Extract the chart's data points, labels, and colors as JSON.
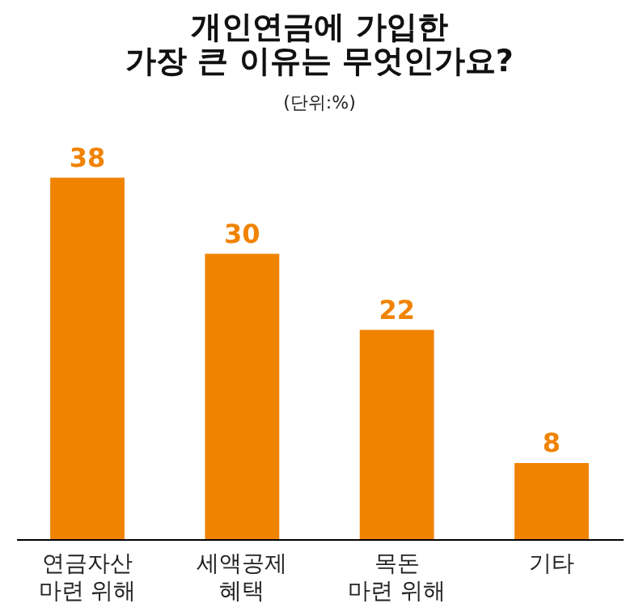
{
  "chart_data": {
    "type": "bar",
    "title": [
      "개인연금에 가입한",
      "가장 큰 이유는 무엇인가요?"
    ],
    "subtitle": "(단위:%)",
    "categories": [
      "연금자산\n마련 위해",
      "세액공제\n혜택",
      "목돈\n마련 위해",
      "기타"
    ],
    "values": [
      38,
      30,
      22,
      8
    ],
    "color": "#f08300",
    "data_labels": true
  }
}
